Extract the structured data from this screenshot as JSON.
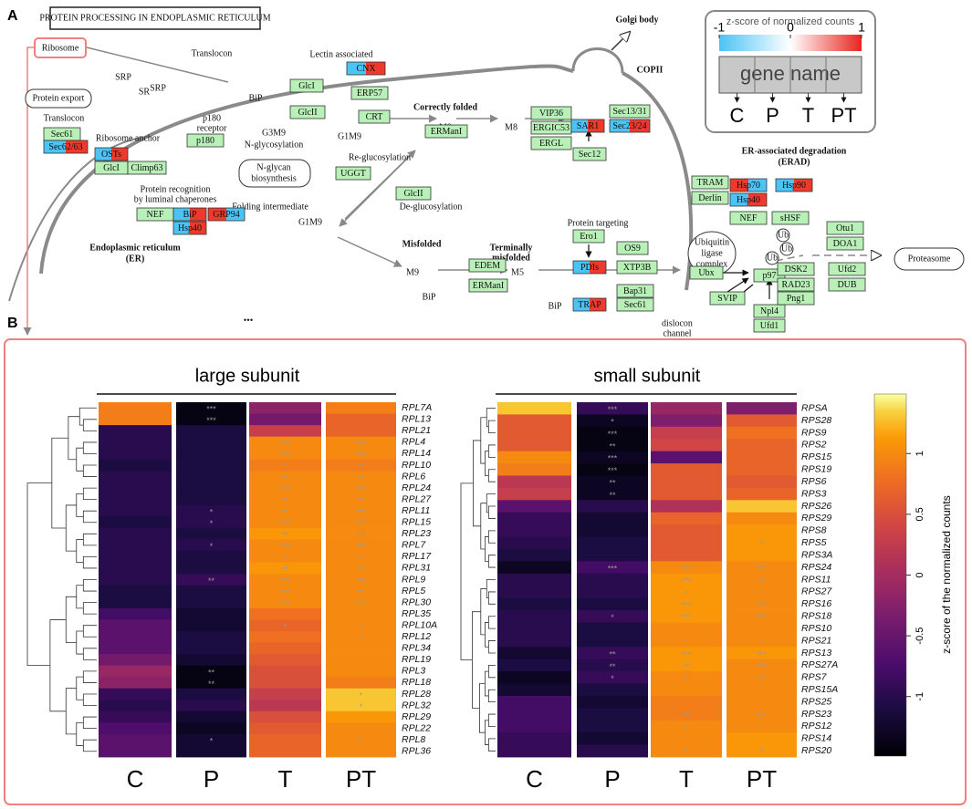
{
  "panel_a": {
    "panel_label": "A",
    "title": "PROTEIN PROCESSING IN ENDOPLASMIC RETICULUM",
    "labels": [
      "Golgi body",
      "Ribosome",
      "SRP",
      "SR",
      "SRP",
      "Translocon",
      "Lectin associated",
      "BiP",
      "G3M9",
      "N-glycosylation",
      "p180",
      "receptor",
      "Ribosome anchor",
      "Protein export",
      "Translocon",
      "Correctly folded",
      "M9",
      "M8",
      "G1M9",
      "COPII",
      "Re-glucosylation",
      "N-glycan",
      "biosynthesis",
      "Protein recognition",
      "by luminal chaperones",
      "Folding intermediate",
      "De-glucosylation",
      "G1M9",
      "Endoplasmic reticulum",
      "(ER)",
      "Misfolded",
      "Protein targeting",
      "Terminally",
      "misfolded",
      "M9",
      "M5",
      "BiP",
      "BiP",
      "ER-associated degradation",
      "(ERAD)",
      "Ubiquitin",
      "ligase",
      "complex",
      "Ub",
      "Ub",
      "Ub",
      "Proteasome",
      "dislocon",
      "channel",
      "•••"
    ],
    "boxes": [
      "Sec61",
      "Sec62/63",
      "OSTs",
      "GlcI",
      "Climp63",
      "p180",
      "GlcI",
      "GlcII",
      "CNX",
      "ERP57",
      "CRT",
      "ERManI",
      "VIP36",
      "ERGIC53",
      "ERGL",
      "SAR1",
      "Sec13/31",
      "Sec23/24",
      "Sec12",
      "UGGT",
      "NEF",
      "BiP",
      "Hsp40",
      "GRP94",
      "GlcII",
      "Ero1",
      "PDIs",
      "OS9",
      "XTP3B",
      "EDEM",
      "ERManI",
      "TRAP",
      "Bap31",
      "Sec61",
      "TRAM",
      "Derlin",
      "Hsp70",
      "Hsp40",
      "Hsp90",
      "NEF",
      "sHSF",
      "Ubx",
      "p97",
      "SVIP",
      "Npl4",
      "Ufd1",
      "Otu1",
      "DOA1",
      "DSK2",
      "Ufd2",
      "RAD23",
      "DUB",
      "Png1"
    ],
    "legend": {
      "title": "z-score of normalized counts",
      "ticks": [
        -1,
        0,
        1
      ],
      "gene": "gene name",
      "conditions": [
        "C",
        "P",
        "T",
        "PT"
      ]
    }
  },
  "panel_b": {
    "panel_label": "B"
  },
  "colorbar": {
    "label": "z-score of the normalized counts",
    "colormap": "inferno",
    "lim": [
      -1.49,
      1.49
    ],
    "ticks": [
      1,
      0.5,
      0,
      -0.5,
      -1
    ]
  },
  "chart_data": [
    {
      "type": "heatmap",
      "title": "large subunit",
      "columns": [
        "C",
        "P",
        "T",
        "PT"
      ],
      "rows": [
        "RPL7A",
        "RPL13",
        "RPL21",
        "RPL4",
        "RPL14",
        "RPL10",
        "RPL6",
        "RPL24",
        "RPL27",
        "RPL11",
        "RPL15",
        "RPL23",
        "RPL7",
        "RPL17",
        "RPL31",
        "RPL9",
        "RPL5",
        "RPL30",
        "RPL35",
        "RPL10A",
        "RPL12",
        "RPL34",
        "RPL19",
        "RPL3",
        "RPL18",
        "RPL28",
        "RPL32",
        "RPL29",
        "RPL22",
        "RPL8",
        "RPL36"
      ],
      "values": [
        [
          0.9,
          -1.4,
          -0.2,
          0.9
        ],
        [
          0.9,
          -1.4,
          -0.4,
          0.7
        ],
        [
          -1.0,
          -1.1,
          0.3,
          0.7
        ],
        [
          -1.0,
          -1.1,
          1.0,
          1.0
        ],
        [
          -1.0,
          -1.1,
          1.0,
          1.0
        ],
        [
          -1.1,
          -1.1,
          0.9,
          0.9
        ],
        [
          -1.0,
          -1.1,
          1.0,
          1.0
        ],
        [
          -1.0,
          -1.1,
          1.0,
          1.0
        ],
        [
          -1.0,
          -1.1,
          1.0,
          1.0
        ],
        [
          -1.0,
          -1.0,
          1.0,
          1.0
        ],
        [
          -1.1,
          -1.0,
          1.0,
          1.0
        ],
        [
          -1.0,
          -1.1,
          1.1,
          1.0
        ],
        [
          -1.0,
          -1.0,
          1.0,
          1.0
        ],
        [
          -1.0,
          -1.1,
          1.0,
          1.0
        ],
        [
          -1.0,
          -1.1,
          1.1,
          1.0
        ],
        [
          -1.0,
          -0.9,
          1.0,
          1.0
        ],
        [
          -1.1,
          -1.1,
          1.0,
          1.0
        ],
        [
          -1.1,
          -1.1,
          1.0,
          1.0
        ],
        [
          -0.8,
          -1.2,
          0.8,
          1.0
        ],
        [
          -0.6,
          -1.2,
          0.7,
          1.0
        ],
        [
          -0.6,
          -1.1,
          0.8,
          1.0
        ],
        [
          -0.6,
          -1.1,
          0.7,
          1.0
        ],
        [
          -0.4,
          -1.2,
          0.6,
          1.0
        ],
        [
          -0.1,
          -1.4,
          0.5,
          1.0
        ],
        [
          -0.2,
          -1.4,
          0.5,
          0.9
        ],
        [
          -0.9,
          -1.1,
          0.3,
          1.3
        ],
        [
          -1.0,
          -1.0,
          0.2,
          1.3
        ],
        [
          -0.9,
          -1.2,
          0.5,
          1.1
        ],
        [
          -0.7,
          -1.3,
          0.6,
          1.0
        ],
        [
          -0.6,
          -1.2,
          0.7,
          1.0
        ],
        [
          -0.6,
          -1.2,
          0.7,
          1.0
        ]
      ],
      "stars": [
        [
          null,
          "***",
          null,
          null
        ],
        [
          null,
          "***",
          null,
          null
        ],
        [
          null,
          null,
          null,
          null
        ],
        [
          null,
          null,
          "***",
          "***"
        ],
        [
          null,
          null,
          "***",
          "***"
        ],
        [
          null,
          null,
          "*",
          "**"
        ],
        [
          null,
          null,
          "**",
          "**"
        ],
        [
          null,
          null,
          "***",
          "***"
        ],
        [
          null,
          null,
          "**",
          "**"
        ],
        [
          null,
          "*",
          "**",
          "***"
        ],
        [
          null,
          "*",
          "***",
          "***"
        ],
        [
          null,
          null,
          "**",
          "**"
        ],
        [
          null,
          "*",
          "***",
          "***"
        ],
        [
          null,
          null,
          "*",
          "*"
        ],
        [
          null,
          null,
          "**",
          "**"
        ],
        [
          null,
          "**",
          "***",
          "***"
        ],
        [
          null,
          null,
          "***",
          "**"
        ],
        [
          null,
          null,
          "***",
          "***"
        ],
        [
          null,
          null,
          null,
          null
        ],
        [
          null,
          null,
          "*",
          "*"
        ],
        [
          null,
          null,
          null,
          "*"
        ],
        [
          null,
          null,
          null,
          null
        ],
        [
          null,
          null,
          null,
          null
        ],
        [
          null,
          "**",
          null,
          null
        ],
        [
          null,
          "**",
          null,
          null
        ],
        [
          null,
          null,
          null,
          "*"
        ],
        [
          null,
          null,
          null,
          "*"
        ],
        [
          null,
          null,
          null,
          null
        ],
        [
          null,
          null,
          null,
          null
        ],
        [
          null,
          "*",
          null,
          "*"
        ],
        [
          null,
          null,
          null,
          null
        ]
      ]
    },
    {
      "type": "heatmap",
      "title": "small subunit",
      "columns": [
        "C",
        "P",
        "T",
        "PT"
      ],
      "rows": [
        "RPSA",
        "RPS28",
        "RPS9",
        "RPS2",
        "RPS15",
        "RPS19",
        "RPS6",
        "RPS3",
        "RPS26",
        "RPS29",
        "RPS8",
        "RPS5",
        "RPS3A",
        "RPS24",
        "RPS11",
        "RPS27",
        "RPS16",
        "RPS18",
        "RPS10",
        "RPS21",
        "RPS13",
        "RPS27A",
        "RPS7",
        "RPS15A",
        "RPS25",
        "RPS23",
        "RPS12",
        "RPS14",
        "RPS20"
      ],
      "values": [
        [
          1.3,
          -0.9,
          -0.1,
          -0.3
        ],
        [
          0.6,
          -1.3,
          -0.3,
          0.6
        ],
        [
          0.6,
          -1.4,
          0.3,
          0.8
        ],
        [
          0.6,
          -1.4,
          0.4,
          0.7
        ],
        [
          1.0,
          -1.3,
          -0.6,
          0.7
        ],
        [
          0.9,
          -1.4,
          0.6,
          0.7
        ],
        [
          0.2,
          -1.3,
          0.6,
          0.6
        ],
        [
          0.3,
          -1.3,
          0.6,
          0.7
        ],
        [
          -0.6,
          -1.0,
          0.1,
          1.3
        ],
        [
          -0.9,
          -1.2,
          0.7,
          1.0
        ],
        [
          -0.9,
          -1.2,
          0.6,
          1.1
        ],
        [
          -1.0,
          -1.1,
          0.6,
          1.1
        ],
        [
          -1.1,
          -1.1,
          0.6,
          1.1
        ],
        [
          -1.3,
          -0.8,
          1.0,
          1.0
        ],
        [
          -1.0,
          -1.0,
          1.1,
          1.0
        ],
        [
          -1.0,
          -1.0,
          1.1,
          1.0
        ],
        [
          -1.1,
          -1.1,
          1.1,
          1.0
        ],
        [
          -1.0,
          -0.9,
          1.1,
          1.0
        ],
        [
          -1.0,
          -1.1,
          1.0,
          1.0
        ],
        [
          -1.0,
          -1.1,
          1.0,
          1.0
        ],
        [
          -1.2,
          -0.9,
          1.1,
          1.1
        ],
        [
          -1.1,
          -1.0,
          1.1,
          1.0
        ],
        [
          -1.3,
          -0.9,
          1.0,
          1.0
        ],
        [
          -1.2,
          -1.1,
          1.0,
          1.0
        ],
        [
          -0.8,
          -1.2,
          0.9,
          1.0
        ],
        [
          -0.8,
          -1.1,
          0.9,
          1.0
        ],
        [
          -0.8,
          -1.1,
          1.0,
          1.0
        ],
        [
          -0.9,
          -1.2,
          1.0,
          1.1
        ],
        [
          -0.9,
          -1.0,
          1.0,
          1.1
        ]
      ],
      "stars": [
        [
          null,
          "***",
          null,
          null
        ],
        [
          null,
          "*",
          null,
          null
        ],
        [
          null,
          "***",
          null,
          null
        ],
        [
          null,
          "**",
          null,
          null
        ],
        [
          null,
          "***",
          null,
          null
        ],
        [
          null,
          "***",
          null,
          null
        ],
        [
          null,
          "**",
          null,
          null
        ],
        [
          null,
          "**",
          null,
          null
        ],
        [
          null,
          null,
          null,
          null
        ],
        [
          null,
          null,
          null,
          null
        ],
        [
          null,
          null,
          null,
          null
        ],
        [
          null,
          null,
          null,
          "*"
        ],
        [
          null,
          null,
          null,
          null
        ],
        [
          null,
          "***",
          "***",
          "***"
        ],
        [
          null,
          null,
          "***",
          "**"
        ],
        [
          null,
          null,
          "*",
          "*"
        ],
        [
          null,
          null,
          "***",
          "***"
        ],
        [
          null,
          "*",
          "***",
          "***"
        ],
        [
          null,
          null,
          null,
          null
        ],
        [
          null,
          null,
          "*",
          "*"
        ],
        [
          null,
          "**",
          "***",
          "***"
        ],
        [
          null,
          "**",
          "**",
          "***"
        ],
        [
          null,
          "*",
          "*",
          "**"
        ],
        [
          null,
          null,
          null,
          null
        ],
        [
          null,
          null,
          null,
          null
        ],
        [
          null,
          null,
          "**",
          "***"
        ],
        [
          null,
          null,
          "*",
          "*"
        ],
        [
          null,
          null,
          null,
          null
        ],
        [
          null,
          null,
          "*",
          "*"
        ]
      ]
    }
  ]
}
